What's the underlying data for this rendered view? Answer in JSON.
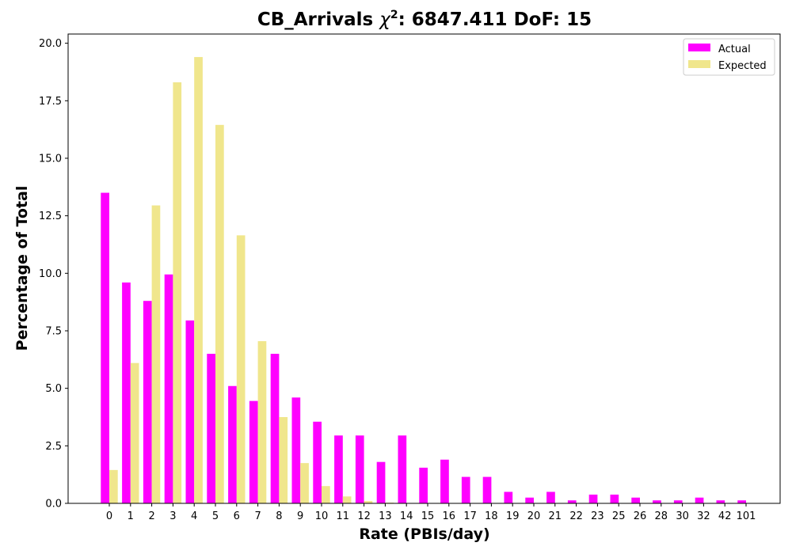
{
  "colors": {
    "actual": "#ff00ff",
    "expected": "#f0e68c"
  },
  "chart_data": {
    "type": "bar",
    "title_prefix": "CB_Arrivals ",
    "title_symbol": "χ",
    "title_exponent": "2",
    "title_suffix": ": 6847.411 DoF: 15",
    "xlabel": "Rate (PBIs/day)",
    "ylabel": "Percentage of Total",
    "ylim": [
      0,
      20.4
    ],
    "yticks": [
      "0.0",
      "2.5",
      "5.0",
      "7.5",
      "10.0",
      "12.5",
      "15.0",
      "17.5",
      "20.0"
    ],
    "legend_position": "top-right",
    "categories": [
      "0",
      "1",
      "2",
      "3",
      "4",
      "5",
      "6",
      "7",
      "8",
      "9",
      "10",
      "11",
      "12",
      "13",
      "14",
      "15",
      "16",
      "17",
      "18",
      "19",
      "20",
      "21",
      "22",
      "23",
      "25",
      "26",
      "28",
      "30",
      "32",
      "42",
      "101"
    ],
    "series": [
      {
        "name": "Actual",
        "values": [
          13.5,
          9.6,
          8.8,
          9.95,
          7.95,
          6.5,
          5.1,
          4.45,
          6.5,
          4.6,
          3.55,
          2.95,
          2.95,
          1.8,
          2.95,
          1.55,
          1.9,
          1.15,
          1.15,
          0.5,
          0.25,
          0.5,
          0.13,
          0.38,
          0.38,
          0.25,
          0.13,
          0.13,
          0.25,
          0.13,
          0.13
        ]
      },
      {
        "name": "Expected",
        "values": [
          1.45,
          6.1,
          12.95,
          18.3,
          19.4,
          16.45,
          11.65,
          7.05,
          3.75,
          1.75,
          0.75,
          0.3,
          0.1,
          0.03,
          0.01,
          0,
          0,
          0,
          0,
          0,
          0,
          0,
          0,
          0,
          0,
          0,
          0,
          0,
          0,
          0,
          0
        ]
      }
    ]
  }
}
